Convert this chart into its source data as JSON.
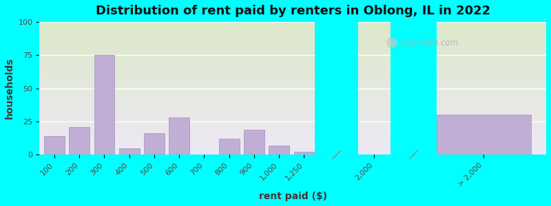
{
  "title": "Distribution of rent paid by renters in Oblong, IL in 2022",
  "xlabel": "rent paid ($)",
  "ylabel": "households",
  "background_color": "#00FFFF",
  "plot_bg_top": "#dce8c8",
  "plot_bg_bottom": "#ede8f5",
  "bar_color": "#c0aed4",
  "bar_edge_color": "#a090bb",
  "ylim": [
    0,
    100
  ],
  "yticks": [
    0,
    25,
    50,
    75,
    100
  ],
  "categories": [
    "100",
    "200",
    "300",
    "400",
    "500",
    "600",
    "700",
    "800",
    "900",
    "1,000",
    "1,250",
    "2,000",
    "> 2,000"
  ],
  "values": [
    14,
    21,
    75,
    5,
    16,
    28,
    0,
    12,
    19,
    7,
    2,
    0,
    30
  ],
  "watermark": "City-Data.com",
  "title_fontsize": 13,
  "axis_label_fontsize": 10,
  "tick_fontsize": 8
}
